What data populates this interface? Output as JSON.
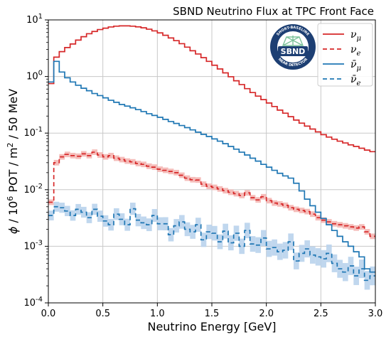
{
  "colors": {
    "red": "#d62728",
    "blue": "#1f77b4",
    "red_band": "#f4b6b3",
    "blue_band": "#b9d3ec",
    "grid": "#c8c8c8",
    "logo_navy": "#1d3f73",
    "logo_green": "#7cc29a"
  },
  "logo": {
    "name": "sbnd-logo",
    "label": "SBND",
    "ring_top": "SHORT-BASELINE",
    "ring_bottom": "NEAR DETECTOR"
  },
  "chart_data": {
    "type": "line",
    "title": "SBND Neutrino Flux at TPC Front Face",
    "xlabel": "Neutrino Energy [GeV]",
    "ylabel": "ϕ / 10^6 POT / m^2 / 50 MeV",
    "xlim": [
      0,
      3
    ],
    "ylim": [
      0.0001,
      10
    ],
    "yscale": "log",
    "grid": true,
    "legend_position": "top-right",
    "x_ticks": [
      "0.0",
      "0.5",
      "1.0",
      "1.5",
      "2.0",
      "2.5",
      "3.0"
    ],
    "y_ticks": [
      {
        "base": "10",
        "exp": "1"
      },
      {
        "base": "10",
        "exp": "0"
      },
      {
        "base": "10",
        "exp": "-1"
      },
      {
        "base": "10",
        "exp": "-2"
      },
      {
        "base": "10",
        "exp": "-3"
      },
      {
        "base": "10",
        "exp": "-4"
      }
    ],
    "bin_width": 0.05,
    "series": [
      {
        "name": "ν_μ",
        "legend_main": "ν",
        "legend_sub": "μ",
        "bar": false,
        "color_key": "red",
        "dashed": false,
        "band": false,
        "values": [
          0.75,
          2.2,
          2.75,
          3.25,
          3.75,
          4.4,
          5.05,
          5.7,
          6.25,
          6.75,
          7.15,
          7.5,
          7.75,
          7.85,
          7.85,
          7.75,
          7.55,
          7.25,
          6.85,
          6.4,
          5.9,
          5.35,
          4.8,
          4.3,
          3.8,
          3.3,
          2.85,
          2.5,
          2.15,
          1.85,
          1.58,
          1.36,
          1.16,
          0.99,
          0.84,
          0.72,
          0.61,
          0.52,
          0.45,
          0.39,
          0.34,
          0.295,
          0.255,
          0.225,
          0.195,
          0.17,
          0.15,
          0.133,
          0.118,
          0.105,
          0.094,
          0.085,
          0.078,
          0.072,
          0.067,
          0.062,
          0.058,
          0.054,
          0.05,
          0.047
        ]
      },
      {
        "name": "ν_e",
        "legend_main": "ν",
        "legend_sub": "e",
        "bar": false,
        "color_key": "red",
        "dashed": true,
        "band": true,
        "values": [
          0.006,
          0.03,
          0.038,
          0.042,
          0.04,
          0.039,
          0.043,
          0.04,
          0.046,
          0.041,
          0.038,
          0.04,
          0.036,
          0.034,
          0.032,
          0.031,
          0.029,
          0.028,
          0.026,
          0.025,
          0.023,
          0.022,
          0.021,
          0.02,
          0.018,
          0.016,
          0.015,
          0.0148,
          0.0125,
          0.0115,
          0.011,
          0.0103,
          0.0096,
          0.009,
          0.0085,
          0.0079,
          0.0088,
          0.0072,
          0.0066,
          0.0075,
          0.0064,
          0.0058,
          0.0056,
          0.0053,
          0.0048,
          0.0045,
          0.0043,
          0.0041,
          0.0037,
          0.0032,
          0.0029,
          0.0027,
          0.0025,
          0.0024,
          0.0023,
          0.0022,
          0.0021,
          0.0022,
          0.0018,
          0.0015
        ]
      },
      {
        "name": "ν̄_μ",
        "legend_main": "ν̄",
        "legend_sub": "μ",
        "bar": true,
        "color_key": "blue",
        "dashed": false,
        "band": false,
        "values": [
          0.8,
          1.85,
          1.2,
          0.95,
          0.8,
          0.7,
          0.62,
          0.56,
          0.5,
          0.46,
          0.42,
          0.38,
          0.35,
          0.32,
          0.3,
          0.28,
          0.26,
          0.24,
          0.22,
          0.205,
          0.19,
          0.175,
          0.16,
          0.148,
          0.136,
          0.125,
          0.114,
          0.104,
          0.095,
          0.087,
          0.079,
          0.072,
          0.065,
          0.058,
          0.052,
          0.046,
          0.041,
          0.036,
          0.032,
          0.028,
          0.025,
          0.022,
          0.0195,
          0.0175,
          0.016,
          0.013,
          0.0095,
          0.0068,
          0.0052,
          0.004,
          0.0031,
          0.0024,
          0.0019,
          0.0015,
          0.0012,
          0.001,
          0.0008,
          0.00065,
          0.0004,
          0.00035
        ]
      },
      {
        "name": "ν̄_e",
        "legend_main": "ν̄",
        "legend_sub": "e",
        "bar": true,
        "color_key": "blue",
        "dashed": true,
        "band": true,
        "values": [
          0.0035,
          0.005,
          0.0048,
          0.0042,
          0.0035,
          0.0045,
          0.004,
          0.0032,
          0.0045,
          0.0034,
          0.0028,
          0.0024,
          0.0037,
          0.003,
          0.0024,
          0.0046,
          0.0029,
          0.0026,
          0.0024,
          0.0035,
          0.0025,
          0.0025,
          0.0016,
          0.0023,
          0.0027,
          0.002,
          0.0018,
          0.0024,
          0.0013,
          0.0018,
          0.0017,
          0.0012,
          0.00185,
          0.00115,
          0.0017,
          0.001,
          0.0019,
          0.0011,
          0.00105,
          0.0014,
          0.0009,
          0.00095,
          0.0008,
          0.00085,
          0.0012,
          0.00055,
          0.00075,
          0.0009,
          0.0007,
          0.00065,
          0.0006,
          0.00075,
          0.0005,
          0.0004,
          0.00035,
          0.00045,
          0.0003,
          0.0004,
          0.00025,
          0.0003
        ]
      }
    ]
  }
}
